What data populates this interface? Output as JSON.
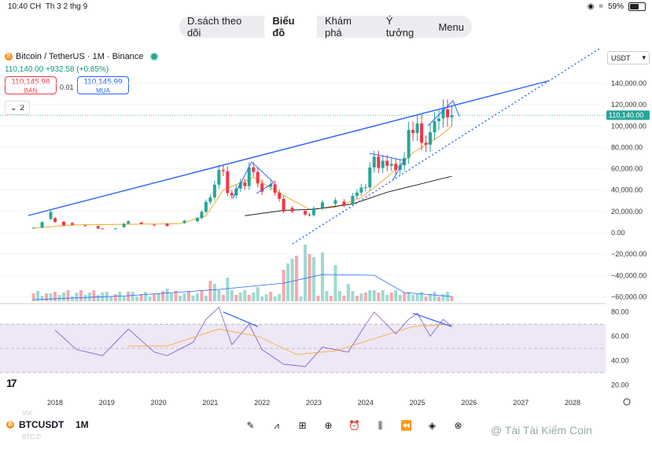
{
  "status_bar": {
    "time": "10:40 CH",
    "date": "Th 3 2 thg 9",
    "battery": "59%",
    "battery_level": 0.59
  },
  "top_tabs": [
    "D.sách theo dõi",
    "Biểu đồ",
    "Khám phá",
    "Ý tưởng",
    "Menu"
  ],
  "active_tab": "Biểu đồ",
  "symbol": {
    "title": "Bitcoin / TetherUS · 1M · Binance",
    "last": "110,140.00",
    "change": "+932.58 (+0.85%)"
  },
  "order": {
    "sell_price": "110,145.98",
    "sell_label": "BÁN",
    "spread": "0.01",
    "buy_price": "110,145.99",
    "buy_label": "MUA"
  },
  "indicators_collapsed": "2",
  "currency": "USDT",
  "price_axis": [
    "140,000.00",
    "120,000.00",
    "100,000.00",
    "80,000.00",
    "60,000.00",
    "40,000.00",
    "20,000.00",
    "0.00",
    "−20,000.00",
    "−40,000.00",
    "−60,000.00"
  ],
  "current_price_label": "110,140.00",
  "rsi_axis": [
    "80.00",
    "60.00",
    "40.00",
    "20.00"
  ],
  "time_axis": [
    "2018",
    "2019",
    "2020",
    "2021",
    "2022",
    "2023",
    "2024",
    "2025",
    "2026",
    "2027",
    "2028"
  ],
  "bottom_toolbar": {
    "ticker": "BTCUSDT",
    "interval": "1M",
    "ghost_label_1": "VIX",
    "ghost_label_2": "BTC.D",
    "icons": [
      "draw-icon",
      "indicators-icon",
      "templates-icon",
      "add-icon",
      "alert-icon",
      "chart-type-icon",
      "replay-icon",
      "layers-icon",
      "more-tools-icon"
    ]
  },
  "watermark": "@ Tài Tài Kiếm Coin",
  "colors": {
    "up": "#26a69a",
    "down": "#f23645",
    "trend": "#2962ff",
    "ema_fast": "#f9a825",
    "ema_slow": "#212121",
    "rsi": "#7e57c2",
    "rsi_band": "#ede7f6"
  },
  "chart_data": {
    "type": "candlestick",
    "title": "Bitcoin / TetherUS · 1M · Binance",
    "x_range": [
      "2017-08",
      "2028-10"
    ],
    "y_range": [
      -60000,
      140000
    ],
    "candles_approx": [
      [
        "2017-08",
        4300,
        4700
      ],
      [
        "2017-10",
        4700,
        10000
      ],
      [
        "2017-12",
        13000,
        19500
      ],
      [
        "2018-01",
        13700,
        10200
      ],
      [
        "2018-03",
        10300,
        6900
      ],
      [
        "2018-05",
        9200,
        7500
      ],
      [
        "2018-08",
        7000,
        6600
      ],
      [
        "2018-11",
        6300,
        4000
      ],
      [
        "2018-12",
        4000,
        3700
      ],
      [
        "2019-03",
        3800,
        4100
      ],
      [
        "2019-05",
        5300,
        8500
      ],
      [
        "2019-06",
        8500,
        10800
      ],
      [
        "2019-09",
        9600,
        8300
      ],
      [
        "2019-12",
        7500,
        7200
      ],
      [
        "2020-03",
        8500,
        6400
      ],
      [
        "2020-07",
        9100,
        11300
      ],
      [
        "2020-10",
        10800,
        13800
      ],
      [
        "2020-11",
        13800,
        19700
      ],
      [
        "2020-12",
        19700,
        29000
      ],
      [
        "2021-01",
        29000,
        33100
      ],
      [
        "2021-02",
        33100,
        45100
      ],
      [
        "2021-03",
        45100,
        58800
      ],
      [
        "2021-04",
        58800,
        57700
      ],
      [
        "2021-05",
        57700,
        37300
      ],
      [
        "2021-06",
        37300,
        35000
      ],
      [
        "2021-07",
        35000,
        41500
      ],
      [
        "2021-08",
        41500,
        47100
      ],
      [
        "2021-09",
        47100,
        43800
      ],
      [
        "2021-10",
        43800,
        61300
      ],
      [
        "2021-11",
        61300,
        57000
      ],
      [
        "2021-12",
        57000,
        46200
      ],
      [
        "2022-01",
        46200,
        38500
      ],
      [
        "2022-03",
        43200,
        45500
      ],
      [
        "2022-04",
        45500,
        37600
      ],
      [
        "2022-05",
        37600,
        31800
      ],
      [
        "2022-06",
        31800,
        19900
      ],
      [
        "2022-08",
        23300,
        20000
      ],
      [
        "2022-11",
        20500,
        17200
      ],
      [
        "2022-12",
        17200,
        16500
      ],
      [
        "2023-01",
        16500,
        23100
      ],
      [
        "2023-03",
        23100,
        28500
      ],
      [
        "2023-06",
        27200,
        30500
      ],
      [
        "2023-08",
        29200,
        26000
      ],
      [
        "2023-10",
        27000,
        34600
      ],
      [
        "2023-11",
        34600,
        37700
      ],
      [
        "2023-12",
        37700,
        42300
      ],
      [
        "2024-01",
        42300,
        42600
      ],
      [
        "2024-02",
        42600,
        61200
      ],
      [
        "2024-03",
        61200,
        71300
      ],
      [
        "2024-04",
        71300,
        60700
      ],
      [
        "2024-05",
        60700,
        67500
      ],
      [
        "2024-06",
        67500,
        62800
      ],
      [
        "2024-07",
        62800,
        64600
      ],
      [
        "2024-08",
        64600,
        58900
      ],
      [
        "2024-09",
        58900,
        63300
      ],
      [
        "2024-10",
        63300,
        70200
      ],
      [
        "2024-11",
        70200,
        96400
      ],
      [
        "2024-12",
        96400,
        93400
      ],
      [
        "2025-01",
        93400,
        102400
      ],
      [
        "2025-02",
        102400,
        84300
      ],
      [
        "2025-03",
        84300,
        82500
      ],
      [
        "2025-04",
        82500,
        94200
      ],
      [
        "2025-05",
        94200,
        104600
      ],
      [
        "2025-06",
        104600,
        107100
      ],
      [
        "2025-07",
        107100,
        115700
      ],
      [
        "2025-08",
        115700,
        108200
      ],
      [
        "2025-09",
        108200,
        110140
      ]
    ],
    "rsi": {
      "ylim": [
        20,
        80
      ],
      "overbought": 70,
      "oversold": 30
    }
  }
}
